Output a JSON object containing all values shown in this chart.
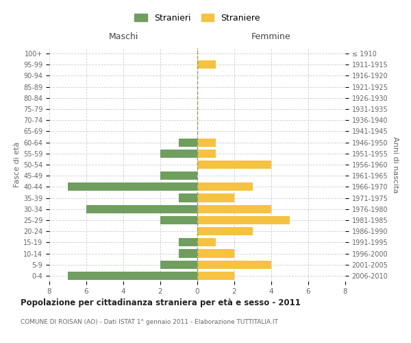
{
  "age_groups": [
    "0-4",
    "5-9",
    "10-14",
    "15-19",
    "20-24",
    "25-29",
    "30-34",
    "35-39",
    "40-44",
    "45-49",
    "50-54",
    "55-59",
    "60-64",
    "65-69",
    "70-74",
    "75-79",
    "80-84",
    "85-89",
    "90-94",
    "95-99",
    "100+"
  ],
  "birth_years": [
    "2006-2010",
    "2001-2005",
    "1996-2000",
    "1991-1995",
    "1986-1990",
    "1981-1985",
    "1976-1980",
    "1971-1975",
    "1966-1970",
    "1961-1965",
    "1956-1960",
    "1951-1955",
    "1946-1950",
    "1941-1945",
    "1936-1940",
    "1931-1935",
    "1926-1930",
    "1921-1925",
    "1916-1920",
    "1911-1915",
    "≤ 1910"
  ],
  "maschi": [
    7,
    2,
    1,
    1,
    0,
    2,
    6,
    1,
    7,
    2,
    0,
    2,
    1,
    0,
    0,
    0,
    0,
    0,
    0,
    0,
    0
  ],
  "femmine": [
    2,
    4,
    2,
    1,
    3,
    5,
    4,
    2,
    3,
    0,
    4,
    1,
    1,
    0,
    0,
    0,
    0,
    0,
    0,
    1,
    0
  ],
  "male_color": "#6f9e5f",
  "female_color": "#f5c242",
  "title": "Popolazione per cittadinanza straniera per età e sesso - 2011",
  "subtitle": "COMUNE DI ROISAN (AO) - Dati ISTAT 1° gennaio 2011 - Elaborazione TUTTITALIA.IT",
  "xlabel_left": "Maschi",
  "xlabel_right": "Femmine",
  "ylabel_left": "Fasce di età",
  "ylabel_right": "Anni di nascita",
  "legend_male": "Stranieri",
  "legend_female": "Straniere",
  "xlim": 8,
  "background_color": "#ffffff",
  "grid_color": "#cccccc"
}
